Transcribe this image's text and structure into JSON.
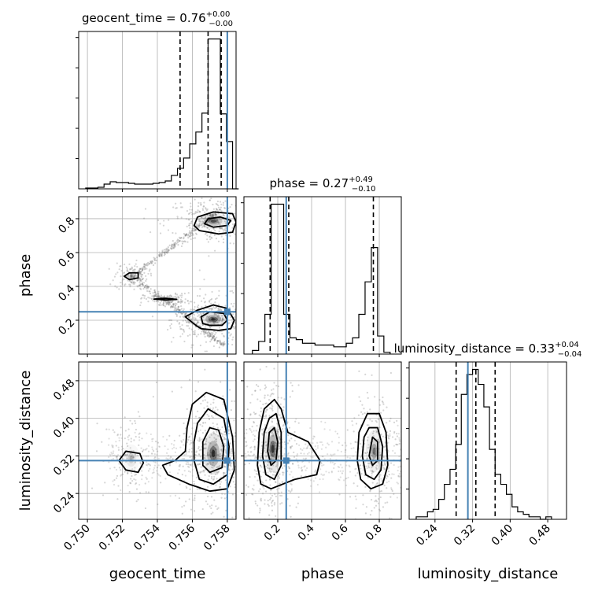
{
  "chart_data": {
    "type": "corner",
    "truth_color": "#4682b4",
    "parameters": [
      {
        "name": "geocent_time",
        "title": {
          "prefix": "geocent_time = 0.76",
          "upper": "+0.00",
          "lower": "−0.00"
        },
        "range": [
          0.7495,
          0.7585
        ],
        "ticks": [
          0.75,
          0.752,
          0.754,
          0.756,
          0.758
        ],
        "tick_labels": [
          "0.750",
          "0.752",
          "0.754",
          "0.756",
          "0.758"
        ],
        "truth": 0.758,
        "quantiles": [
          0.7553,
          0.7569,
          0.75765
        ],
        "hist": {
          "edges": [
            0.7499,
            0.75025,
            0.7506,
            0.75095,
            0.7513,
            0.75165,
            0.752,
            0.75235,
            0.7527,
            0.75305,
            0.7534,
            0.75375,
            0.7541,
            0.75445,
            0.7548,
            0.75515,
            0.7555,
            0.75585,
            0.7562,
            0.75655,
            0.7569,
            0.75725,
            0.7576,
            0.75795,
            0.7583,
            0.75865
          ],
          "counts": [
            1,
            1,
            2,
            6,
            9,
            8,
            8,
            7,
            6,
            6,
            6,
            7,
            8,
            10,
            17,
            26,
            39,
            57,
            72,
            96,
            190,
            190,
            95,
            60,
            0
          ]
        }
      },
      {
        "name": "phase",
        "title": {
          "prefix": "phase = 0.27",
          "upper": "+0.49",
          "lower": "−0.10"
        },
        "range": [
          0.0,
          0.93
        ],
        "ticks": [
          0.2,
          0.4,
          0.6,
          0.8
        ],
        "tick_labels": [
          "0.2",
          "0.4",
          "0.6",
          "0.8"
        ],
        "truth": 0.25,
        "quantiles": [
          0.155,
          0.265,
          0.765
        ],
        "hist": {
          "edges": [
            0.05,
            0.087,
            0.124,
            0.161,
            0.198,
            0.235,
            0.272,
            0.309,
            0.346,
            0.383,
            0.42,
            0.457,
            0.494,
            0.531,
            0.568,
            0.605,
            0.642,
            0.679,
            0.716,
            0.753,
            0.79,
            0.827,
            0.864
          ],
          "counts": [
            4,
            14,
            44,
            166,
            166,
            44,
            18,
            16,
            12,
            12,
            10,
            10,
            10,
            8,
            8,
            12,
            18,
            44,
            80,
            118,
            20,
            2
          ]
        }
      },
      {
        "name": "luminosity_distance",
        "title": {
          "prefix": "luminosity_distance = 0.33",
          "upper": "+0.04",
          "lower": "−0.04"
        },
        "range": [
          0.185,
          0.52
        ],
        "ticks": [
          0.24,
          0.32,
          0.4,
          0.48
        ],
        "tick_labels": [
          "0.24",
          "0.32",
          "0.40",
          "0.48"
        ],
        "truth": 0.31,
        "quantiles": [
          0.285,
          0.327,
          0.368
        ],
        "hist": {
          "edges": [
            0.2,
            0.212,
            0.224,
            0.236,
            0.248,
            0.26,
            0.272,
            0.284,
            0.296,
            0.308,
            0.32,
            0.332,
            0.344,
            0.356,
            0.368,
            0.38,
            0.392,
            0.404,
            0.416,
            0.428,
            0.44,
            0.452,
            0.464,
            0.476,
            0.488
          ],
          "counts": [
            1,
            1,
            3,
            4,
            8,
            14,
            20,
            30,
            50,
            58,
            60,
            54,
            45,
            28,
            18,
            14,
            10,
            5,
            3,
            2,
            1,
            1,
            0,
            1
          ]
        }
      }
    ],
    "pairs": [
      {
        "x": "geocent_time",
        "y": "phase",
        "blobs": [
          {
            "cx": 0.7572,
            "cy": 0.205,
            "rx": 0.00075,
            "ry": 0.045,
            "w": 1.0
          },
          {
            "cx": 0.7572,
            "cy": 0.785,
            "rx": 0.00085,
            "ry": 0.045,
            "w": 0.8
          },
          {
            "cx": 0.7525,
            "cy": 0.46,
            "rx": 0.0003,
            "ry": 0.025,
            "w": 0.35
          },
          {
            "cx": 0.7545,
            "cy": 0.325,
            "rx": 0.0004,
            "ry": 0.01,
            "w": 0.35
          }
        ],
        "contours": [
          [
            [
              0.7562,
              0.17
            ],
            [
              0.7565,
              0.15
            ],
            [
              0.7575,
              0.14
            ],
            [
              0.7582,
              0.15
            ],
            [
              0.7584,
              0.2
            ],
            [
              0.758,
              0.27
            ],
            [
              0.7572,
              0.29
            ],
            [
              0.7563,
              0.26
            ],
            [
              0.7556,
              0.22
            ]
          ],
          [
            [
              0.7566,
              0.18
            ],
            [
              0.757,
              0.17
            ],
            [
              0.7577,
              0.17
            ],
            [
              0.758,
              0.2
            ],
            [
              0.7578,
              0.24
            ],
            [
              0.757,
              0.25
            ],
            [
              0.7565,
              0.22
            ]
          ],
          [
            [
              0.7561,
              0.76
            ],
            [
              0.7564,
              0.73
            ],
            [
              0.7575,
              0.71
            ],
            [
              0.7583,
              0.72
            ],
            [
              0.7585,
              0.78
            ],
            [
              0.7583,
              0.83
            ],
            [
              0.7572,
              0.84
            ],
            [
              0.7563,
              0.81
            ]
          ],
          [
            [
              0.7567,
              0.77
            ],
            [
              0.7572,
              0.75
            ],
            [
              0.758,
              0.76
            ],
            [
              0.7582,
              0.79
            ],
            [
              0.7576,
              0.81
            ],
            [
              0.7569,
              0.8
            ]
          ],
          [
            [
              0.7521,
              0.46
            ],
            [
              0.7524,
              0.44
            ],
            [
              0.7529,
              0.45
            ],
            [
              0.7529,
              0.48
            ],
            [
              0.7524,
              0.48
            ]
          ],
          [
            [
              0.7538,
              0.325
            ],
            [
              0.7545,
              0.32
            ],
            [
              0.7551,
              0.323
            ],
            [
              0.7545,
              0.33
            ]
          ]
        ]
      },
      {
        "x": "geocent_time",
        "y": "luminosity_distance",
        "blobs": [
          {
            "cx": 0.7572,
            "cy": 0.325,
            "rx": 0.0006,
            "ry": 0.045,
            "w": 1.0
          },
          {
            "cx": 0.7525,
            "cy": 0.315,
            "rx": 0.0005,
            "ry": 0.03,
            "w": 0.3
          }
        ],
        "contours": [
          [
            [
              0.7546,
              0.28
            ],
            [
              0.7558,
              0.26
            ],
            [
              0.757,
              0.245
            ],
            [
              0.758,
              0.25
            ],
            [
              0.7584,
              0.29
            ],
            [
              0.7583,
              0.36
            ],
            [
              0.7578,
              0.44
            ],
            [
              0.7568,
              0.455
            ],
            [
              0.756,
              0.43
            ],
            [
              0.7557,
              0.38
            ],
            [
              0.7556,
              0.33
            ],
            [
              0.755,
              0.31
            ],
            [
              0.7543,
              0.3
            ]
          ],
          [
            [
              0.7561,
              0.31
            ],
            [
              0.7564,
              0.27
            ],
            [
              0.7572,
              0.26
            ],
            [
              0.758,
              0.28
            ],
            [
              0.7581,
              0.34
            ],
            [
              0.7578,
              0.4
            ],
            [
              0.7569,
              0.42
            ],
            [
              0.7563,
              0.39
            ],
            [
              0.7561,
              0.35
            ]
          ],
          [
            [
              0.7566,
              0.3
            ],
            [
              0.757,
              0.285
            ],
            [
              0.7577,
              0.295
            ],
            [
              0.7578,
              0.34
            ],
            [
              0.7575,
              0.375
            ],
            [
              0.757,
              0.38
            ],
            [
              0.7566,
              0.35
            ]
          ],
          [
            [
              0.7518,
              0.31
            ],
            [
              0.7522,
              0.29
            ],
            [
              0.7529,
              0.285
            ],
            [
              0.7532,
              0.305
            ],
            [
              0.753,
              0.325
            ],
            [
              0.7522,
              0.33
            ]
          ]
        ]
      },
      {
        "x": "phase",
        "y": "luminosity_distance",
        "blobs": [
          {
            "cx": 0.17,
            "cy": 0.335,
            "rx": 0.05,
            "ry": 0.05,
            "w": 1.0
          },
          {
            "cx": 0.77,
            "cy": 0.33,
            "rx": 0.05,
            "ry": 0.045,
            "w": 0.6
          }
        ],
        "contours": [
          [
            [
              0.08,
              0.3
            ],
            [
              0.1,
              0.26
            ],
            [
              0.16,
              0.25
            ],
            [
              0.3,
              0.27
            ],
            [
              0.43,
              0.28
            ],
            [
              0.45,
              0.31
            ],
            [
              0.38,
              0.35
            ],
            [
              0.26,
              0.37
            ],
            [
              0.22,
              0.42
            ],
            [
              0.18,
              0.44
            ],
            [
              0.12,
              0.42
            ],
            [
              0.09,
              0.37
            ]
          ],
          [
            [
              0.11,
              0.32
            ],
            [
              0.13,
              0.28
            ],
            [
              0.18,
              0.27
            ],
            [
              0.22,
              0.3
            ],
            [
              0.22,
              0.37
            ],
            [
              0.19,
              0.41
            ],
            [
              0.15,
              0.4
            ],
            [
              0.12,
              0.37
            ]
          ],
          [
            [
              0.14,
              0.33
            ],
            [
              0.16,
              0.3
            ],
            [
              0.19,
              0.31
            ],
            [
              0.2,
              0.35
            ],
            [
              0.18,
              0.38
            ],
            [
              0.15,
              0.37
            ]
          ],
          [
            [
              0.67,
              0.31
            ],
            [
              0.69,
              0.27
            ],
            [
              0.75,
              0.25
            ],
            [
              0.82,
              0.26
            ],
            [
              0.85,
              0.3
            ],
            [
              0.84,
              0.37
            ],
            [
              0.8,
              0.41
            ],
            [
              0.73,
              0.41
            ],
            [
              0.68,
              0.37
            ]
          ],
          [
            [
              0.7,
              0.32
            ],
            [
              0.72,
              0.28
            ],
            [
              0.77,
              0.27
            ],
            [
              0.81,
              0.29
            ],
            [
              0.82,
              0.34
            ],
            [
              0.79,
              0.38
            ],
            [
              0.74,
              0.38
            ],
            [
              0.71,
              0.36
            ]
          ],
          [
            [
              0.74,
              0.32
            ],
            [
              0.76,
              0.3
            ],
            [
              0.79,
              0.31
            ],
            [
              0.79,
              0.35
            ],
            [
              0.76,
              0.36
            ]
          ]
        ]
      }
    ]
  }
}
